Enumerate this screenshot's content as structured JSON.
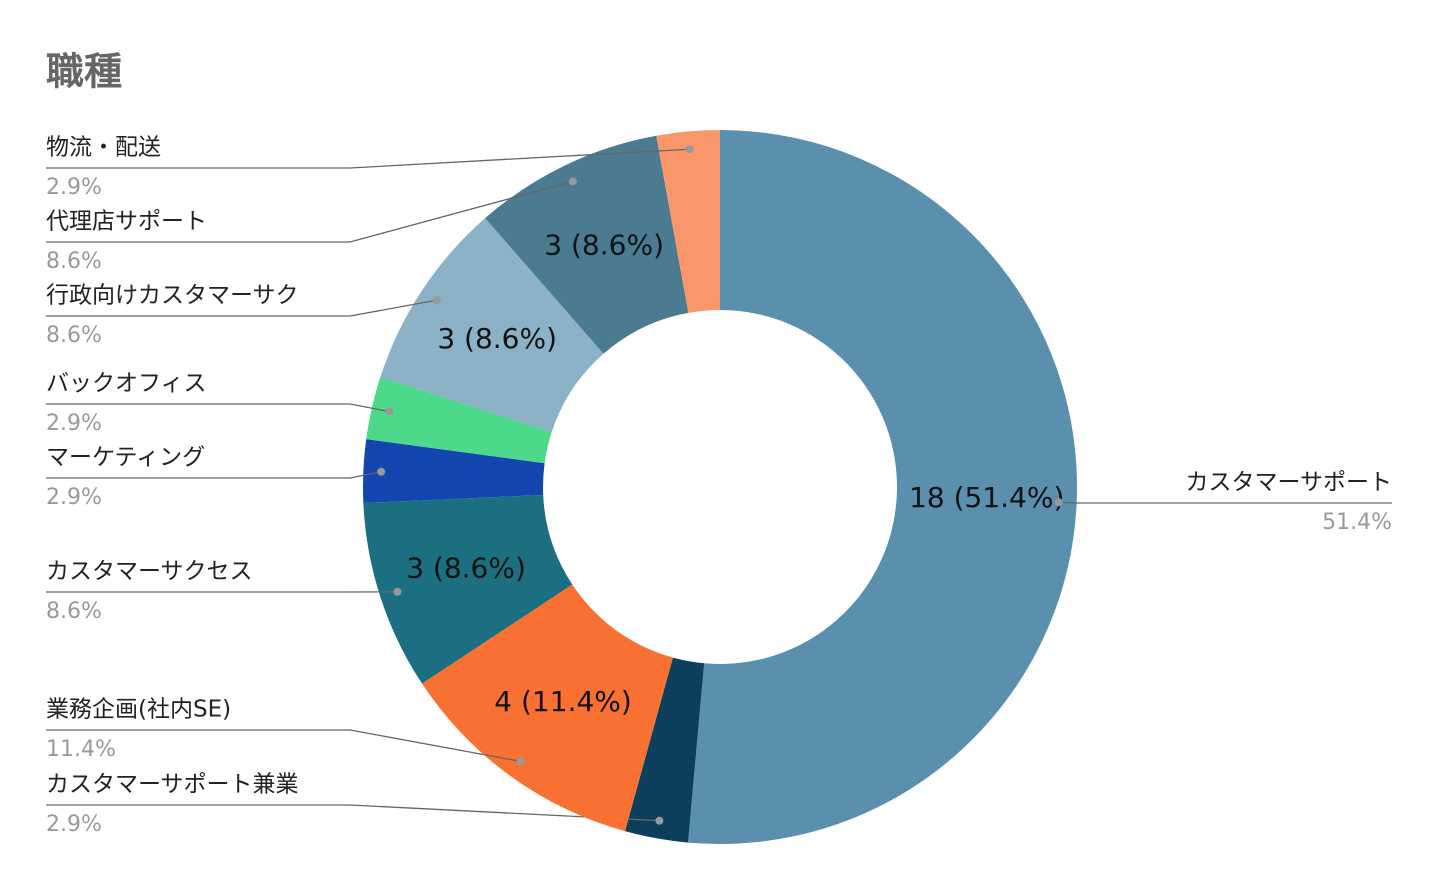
{
  "chart_data": {
    "type": "donut",
    "title": "職種",
    "categories": [
      "カスタマーサポート",
      "カスタマーサポート兼業",
      "業務企画(社内SE)",
      "カスタマーサクセス",
      "マーケティング",
      "バックオフィス",
      "行政向けカスタマーサク",
      "代理店サポート",
      "物流・配送"
    ],
    "values": [
      18,
      1,
      4,
      3,
      1,
      1,
      3,
      3,
      1
    ],
    "value_labels": [
      "18 (51.4%)",
      null,
      "4 (11.4%)",
      "3 (8.6%)",
      null,
      null,
      "3 (8.6%)",
      "3 (8.6%)",
      null
    ],
    "percent_labels": [
      "51.4%",
      "2.9%",
      "11.4%",
      "8.6%",
      "2.9%",
      "2.9%",
      "8.6%",
      "8.6%",
      "2.9%"
    ],
    "colors": [
      "#5a8fae",
      "#0b3f5c",
      "#f97132",
      "#1c6f80",
      "#1446b0",
      "#4dd98a",
      "#8bb2c7",
      "#4a7b91",
      "#f9976a"
    ]
  }
}
